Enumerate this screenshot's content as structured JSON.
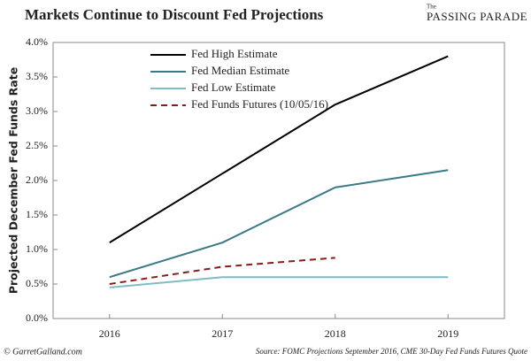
{
  "chart_data": {
    "type": "line",
    "title": "Markets Continue to Discount Fed Projections",
    "logo_small": "The",
    "logo": "PASSING PARADE",
    "y_label": "Projected December Fed Funds Rate",
    "credit": "© GarretGalland.com",
    "source": "Source: FOMC Projections September 2016,  CME 30-Day Fed Funds Futures Quote",
    "categories": [
      "2016",
      "2017",
      "2018",
      "2019"
    ],
    "series": [
      {
        "name": "Fed High Estimate",
        "color": "#000000",
        "dashed": false,
        "values": [
          1.1,
          2.1,
          3.1,
          3.8
        ]
      },
      {
        "name": "Fed Median Estimate",
        "color": "#3b7a85",
        "dashed": false,
        "values": [
          0.6,
          1.1,
          1.9,
          2.15
        ]
      },
      {
        "name": "Fed Low Estimate",
        "color": "#7fbcc4",
        "dashed": false,
        "values": [
          0.45,
          0.6,
          0.6,
          0.6
        ]
      },
      {
        "name": "Fed Funds Futures (10/05/16)",
        "color": "#8b1a1a",
        "dashed": true,
        "values": [
          0.5,
          0.75,
          0.88,
          null
        ]
      }
    ],
    "ylim": [
      0,
      4
    ],
    "yticks": [
      {
        "value": 0,
        "label": "0.0%"
      },
      {
        "value": 0.5,
        "label": "0.5%"
      },
      {
        "value": 1,
        "label": "1.0%"
      },
      {
        "value": 1.5,
        "label": "1.5%"
      },
      {
        "value": 2,
        "label": "2.0%"
      },
      {
        "value": 2.5,
        "label": "2.5%"
      },
      {
        "value": 3,
        "label": "3.0%"
      },
      {
        "value": 3.5,
        "label": "3.5%"
      },
      {
        "value": 4,
        "label": "4.0%"
      }
    ],
    "grid": false
  }
}
